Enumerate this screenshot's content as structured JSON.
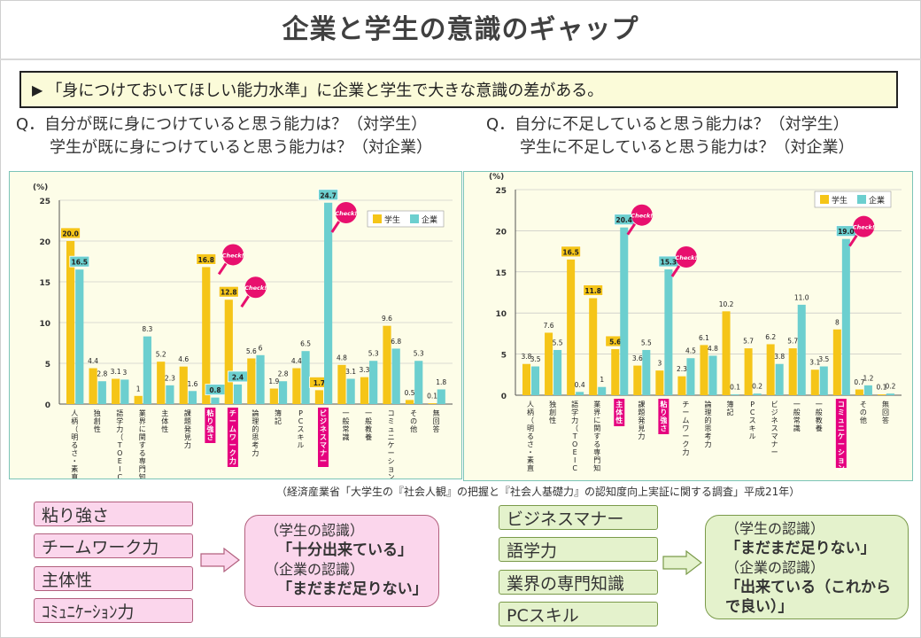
{
  "title": "企業と学生の意識のギャップ",
  "banner": {
    "marker": "▶",
    "text": "「身につけておいてほしい能力水準」に企業と学生で大きな意識の差がある。"
  },
  "questions": {
    "left": {
      "line1": "Q．自分が既に身につけていると思う能力は？（対学生）",
      "line2": "学生が既に身につけていると思う能力は？（対企業）"
    },
    "right": {
      "line1": "Q．自分に不足していると思う能力は？（対学生）",
      "line2": "学生に不足していると思う能力は？（対企業）"
    }
  },
  "colors": {
    "student": "#f5c518",
    "company": "#6ccfcf",
    "highlight": "#e5007f",
    "check": "#e8106e",
    "grid": "#bbbbbb"
  },
  "chart_data": [
    {
      "type": "bar",
      "ylabel": "(%)",
      "ylim": [
        0,
        25
      ],
      "yticks": [
        0,
        5,
        10,
        15,
        20,
        25
      ],
      "legend_position": "top-right",
      "categories": [
        "人柄（明るさ・素直さ等）",
        "独創性",
        "語学力（TOEICなど）",
        "業界に関する専門知識",
        "主体性",
        "課題発見力",
        "粘り強さ",
        "チームワーク力",
        "論理的思考力",
        "簿記",
        "PCスキル",
        "ビジネスマナー",
        "一般常識",
        "一般教養",
        "コミュニケーション力",
        "その他",
        "無回答"
      ],
      "highlighted": [
        "粘り強さ",
        "チームワーク力",
        "ビジネスマナー"
      ],
      "check_marks": [
        "粘り強さ",
        "チームワーク力",
        "ビジネスマナー"
      ],
      "boxed_labels": [
        "20.0",
        "16.5",
        "16.8",
        "12.8",
        "2.4",
        "0.8",
        "1.7",
        "24.7"
      ],
      "series": [
        {
          "name": "学生",
          "values": [
            20.0,
            4.4,
            3.1,
            1.0,
            5.2,
            4.6,
            16.8,
            12.8,
            5.6,
            1.9,
            4.4,
            1.7,
            4.8,
            3.3,
            9.6,
            0.5,
            0.1
          ]
        },
        {
          "name": "企業",
          "values": [
            16.5,
            2.8,
            3.0,
            8.3,
            2.3,
            1.6,
            0.8,
            2.4,
            6.0,
            2.8,
            6.5,
            24.7,
            3.1,
            5.3,
            6.8,
            5.3,
            1.8
          ]
        }
      ],
      "check_text": "Check!"
    },
    {
      "type": "bar",
      "ylabel": "(%)",
      "ylim": [
        0,
        25
      ],
      "yticks": [
        0,
        5,
        10,
        15,
        20,
        25
      ],
      "legend_position": "top-right",
      "categories": [
        "人柄（明るさ・素直さ等）",
        "独創性",
        "語学力（TOEICなど）",
        "業界に関する専門知識",
        "主体性",
        "課題発見力",
        "粘り強さ",
        "チームワーク力",
        "論理的思考力",
        "簿記",
        "PCスキル",
        "ビジネスマナー",
        "一般常識",
        "一般教養",
        "コミュニケーション力",
        "その他",
        "無回答"
      ],
      "highlighted": [
        "主体性",
        "粘り強さ",
        "コミュニケーション力"
      ],
      "check_marks": [
        "主体性",
        "粘り強さ",
        "コミュニケーション力"
      ],
      "boxed_labels": [
        "16.5",
        "11.8",
        "0.4",
        "5.6",
        "20.4",
        "3.0",
        "15.3",
        "8.0",
        "19.0"
      ],
      "series": [
        {
          "name": "学生",
          "values": [
            3.8,
            7.6,
            16.5,
            11.8,
            5.6,
            3.6,
            3.0,
            2.3,
            6.1,
            10.2,
            5.7,
            6.2,
            5.7,
            3.1,
            8.0,
            0.7,
            0.1
          ]
        },
        {
          "name": "企業",
          "values": [
            3.5,
            5.5,
            0.4,
            1.0,
            20.4,
            5.5,
            15.3,
            4.5,
            4.8,
            0.1,
            0.2,
            3.8,
            11.0,
            3.5,
            19.0,
            1.2,
            0.2
          ]
        }
      ],
      "check_text": "Check!"
    }
  ],
  "source": "（経済産業省「大学生の『社会人観』の把握と『社会人基礎力』の認知度向上実証に関する調査」平成21年）",
  "bottom_left": {
    "items": [
      "粘り強さ",
      "チームワーク力",
      "主体性",
      "ｺﾐｭﾆｹｰｼｮﾝ力"
    ],
    "bubble": {
      "l1": "（学生の認識）",
      "l2": "「十分出来ている」",
      "l3": "（企業の認識）",
      "l4": "「まだまだ足りない」"
    }
  },
  "bottom_right": {
    "items": [
      "ビジネスマナー",
      "語学力",
      "業界の専門知識",
      "PCスキル"
    ],
    "bubble": {
      "l1": "（学生の認識）",
      "l2": "「まだまだ足りない」",
      "l3": "（企業の認識）",
      "l4": "「出来ている（これから",
      "l5": "で良い）」"
    }
  }
}
